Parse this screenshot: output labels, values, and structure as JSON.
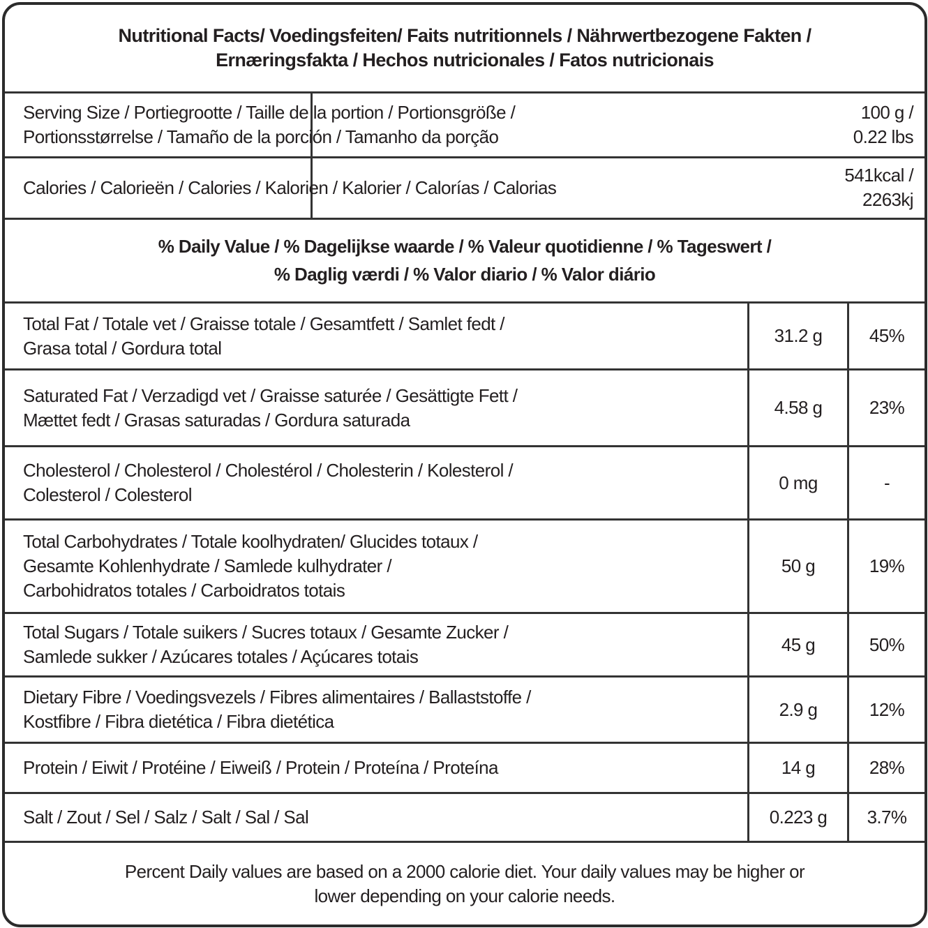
{
  "title": [
    "Nutritional Facts/ Voedingsfeiten/ Faits nutritionnels / Nährwertbezogene Fakten /",
    "Ernæringsfakta / Hechos nutricionales / Fatos nutricionais"
  ],
  "serving": {
    "label": [
      "Serving Size / Portiegrootte / Taille de la portion / Portionsgröße /",
      "Portionsstørrelse / Tamaño de la porción / Tamanho da porção"
    ],
    "value": [
      "100 g /",
      "0.22 lbs"
    ]
  },
  "calories": {
    "label": [
      "Calories / Calorieën / Calories / Kalorien / Kalorier / Calorías / Calorias"
    ],
    "value": [
      "541kcal /",
      "2263kj"
    ]
  },
  "daily_value_header": [
    "% Daily Value / % Dagelijkse waarde / % Valeur quotidienne / % Tageswert /",
    "% Daglig værdi / % Valor diario / % Valor diário"
  ],
  "nutrients": [
    {
      "label": [
        "Total Fat / Totale vet / Graisse totale / Gesamtfett / Samlet fedt /",
        "Grasa total / Gordura total"
      ],
      "amount": "31.2 g",
      "dv": "45%"
    },
    {
      "label": [
        "Saturated Fat / Verzadigd vet / Graisse saturée / Gesättigte Fett /",
        "Mættet fedt / Grasas saturadas / Gordura saturada"
      ],
      "amount": "4.58 g",
      "dv": "23%"
    },
    {
      "label": [
        "Cholesterol / Cholesterol  / Cholestérol / Cholesterin /  Kolesterol /",
        "Colesterol / Colesterol"
      ],
      "amount": "0 mg",
      "dv": "-"
    },
    {
      "label": [
        "Total Carbohydrates / Totale koolhydraten/ Glucides totaux /",
        "Gesamte Kohlenhydrate / Samlede kulhydrater /",
        "Carbohidratos totales / Carboidratos totais"
      ],
      "amount": "50 g",
      "dv": "19%"
    },
    {
      "label": [
        "Total Sugars / Totale suikers / Sucres totaux / Gesamte Zucker /",
        "Samlede sukker / Azúcares totales / Açúcares totais"
      ],
      "amount": "45 g",
      "dv": "50%"
    },
    {
      "label": [
        "Dietary Fibre / Voedingsvezels / Fibres alimentaires / Ballaststoffe /",
        "Kostfibre / Fibra dietética / Fibra dietética"
      ],
      "amount": "2.9 g",
      "dv": "12%"
    },
    {
      "label": [
        "Protein / Eiwit / Protéine / Eiweiß / Protein / Proteína / Proteína"
      ],
      "amount": "14 g",
      "dv": "28%"
    },
    {
      "label": [
        "Salt / Zout / Sel / Salz / Salt / Sal / Sal"
      ],
      "amount": "0.223 g",
      "dv": "3.7%"
    }
  ],
  "footer": [
    "Percent Daily values are based on a 2000 calorie diet. Your daily values may be higher or",
    "lower depending on your calorie needs."
  ]
}
